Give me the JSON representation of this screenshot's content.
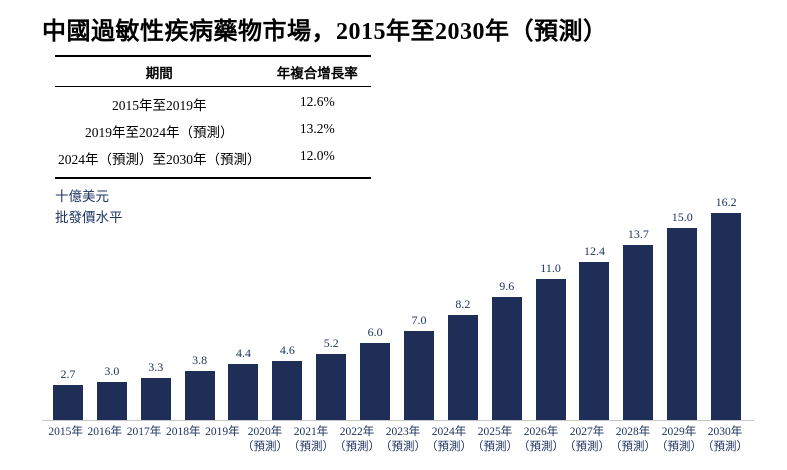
{
  "title": "中國過敏性疾病藥物市場，2015年至2030年（預測）",
  "table": {
    "headers": [
      "期間",
      "年複合增長率"
    ],
    "rows": [
      [
        "2015年至2019年",
        "12.6%"
      ],
      [
        "2019年至2024年（預測）",
        "13.2%"
      ],
      [
        "2024年（預測）至2030年（預測）",
        "12.0%"
      ]
    ]
  },
  "chart_data": {
    "type": "bar",
    "title": "中國過敏性疾病藥物市場，2015年至2030年（預測）",
    "unit_labels": [
      "十億美元",
      "批發價水平"
    ],
    "categories": [
      "2015年",
      "2016年",
      "2017年",
      "2018年",
      "2019年",
      "2020年",
      "2021年",
      "2022年",
      "2023年",
      "2024年",
      "2025年",
      "2026年",
      "2027年",
      "2028年",
      "2029年",
      "2030年"
    ],
    "category_notes": [
      "",
      "",
      "",
      "",
      "",
      "（預測）",
      "（預測）",
      "（預測）",
      "（預測）",
      "（預測）",
      "（預測）",
      "（預測）",
      "（預測）",
      "（預測）",
      "（預測）",
      "（預測）"
    ],
    "values": [
      2.7,
      3.0,
      3.3,
      3.8,
      4.4,
      4.6,
      5.2,
      6.0,
      7.0,
      8.2,
      9.6,
      11.0,
      12.4,
      13.7,
      15.0,
      16.2
    ],
    "value_label_decimals": 1,
    "xlabel": "",
    "ylabel": "十億美元 批發價水平",
    "ylim": [
      0,
      16.2
    ],
    "grid": false,
    "legend": false,
    "bar_color": "#1f2e57",
    "text_color": "#1f3461",
    "axis_line_color": "#c9c9c9"
  }
}
